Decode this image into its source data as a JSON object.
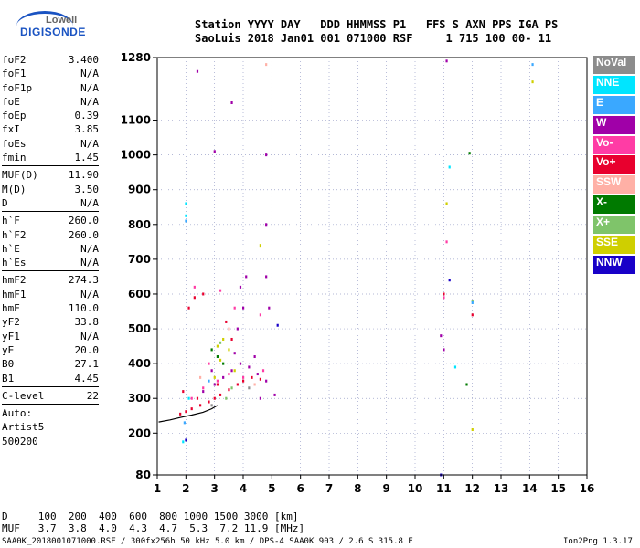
{
  "logo": {
    "line1": "Lowell",
    "line2": "DIGISONDE"
  },
  "header": {
    "labels": "Station YYYY DAY   DDD HHMMSS P1   FFS S AXN PPS IGA PS",
    "values": "SaoLuis 2018 Jan01 001 071000 RSF     1 715 100 00- 11"
  },
  "params": {
    "group1": [
      {
        "label": "foF2",
        "value": "3.400"
      },
      {
        "label": "foF1",
        "value": "N/A"
      },
      {
        "label": "foF1p",
        "value": "N/A"
      },
      {
        "label": "foE",
        "value": "N/A"
      },
      {
        "label": "foEp",
        "value": "0.39"
      },
      {
        "label": "fxI",
        "value": "3.85"
      },
      {
        "label": "foEs",
        "value": "N/A"
      },
      {
        "label": "fmin",
        "value": "1.45"
      }
    ],
    "group2": [
      {
        "label": "MUF(D)",
        "value": "11.90"
      },
      {
        "label": "M(D)",
        "value": "3.50"
      },
      {
        "label": "D",
        "value": "N/A"
      }
    ],
    "group3": [
      {
        "label": "h`F",
        "value": "260.0"
      },
      {
        "label": "h`F2",
        "value": "260.0"
      },
      {
        "label": "h`E",
        "value": "N/A"
      },
      {
        "label": "h`Es",
        "value": "N/A"
      }
    ],
    "group4": [
      {
        "label": "hmF2",
        "value": "274.3"
      },
      {
        "label": "hmF1",
        "value": "N/A"
      },
      {
        "label": "hmE",
        "value": "110.0"
      },
      {
        "label": "yF2",
        "value": "33.8"
      },
      {
        "label": "yF1",
        "value": "N/A"
      },
      {
        "label": "yE",
        "value": "20.0"
      },
      {
        "label": "B0",
        "value": "27.1"
      },
      {
        "label": "B1",
        "value": "4.45"
      }
    ],
    "group5": [
      {
        "label": "C-level",
        "value": "22"
      }
    ],
    "auto": [
      "Auto:",
      "Artist5",
      "500200"
    ]
  },
  "legend": [
    {
      "label": "NoVal",
      "color": "#8c8c8c"
    },
    {
      "label": "NNE",
      "color": "#00e5ff"
    },
    {
      "label": "E",
      "color": "#3aa8ff"
    },
    {
      "label": "W",
      "color": "#a000a8"
    },
    {
      "label": "Vo-",
      "color": "#ff3ca5"
    },
    {
      "label": "Vo+",
      "color": "#e8002e"
    },
    {
      "label": "SSW",
      "color": "#ffb0a6"
    },
    {
      "label": "X-",
      "color": "#007a00"
    },
    {
      "label": "X+",
      "color": "#7fc46a"
    },
    {
      "label": "SSE",
      "color": "#cfcf00"
    },
    {
      "label": "NNW",
      "color": "#1800c8"
    }
  ],
  "bottom": {
    "distance_line": "D     100  200  400  600  800 1000 1500 3000 [km]",
    "muf_line": "MUF   3.7  3.8  4.0  4.3  4.7  5.3  7.2 11.9 [MHz]"
  },
  "footer": {
    "left": "SAA0K_2018001071000.RSF / 300fx256h 50 kHz 5.0 km / DPS-4 SAA0K 903 / 2.6 S 315.8 E",
    "right": "Ion2Png 1.3.17"
  },
  "chart_data": {
    "type": "scatter",
    "xlabel": "",
    "ylabel": "",
    "xlim": [
      1,
      16
    ],
    "ylim": [
      80,
      1280
    ],
    "xticks": [
      "1",
      "2",
      "3",
      "4",
      "5",
      "6",
      "7",
      "8",
      "9",
      "10",
      "11",
      "12",
      "13",
      "14",
      "15",
      "16"
    ],
    "yticks": [
      "80",
      "200",
      "300",
      "400",
      "500",
      "600",
      "700",
      "800",
      "900",
      "1000",
      "1100",
      "1280"
    ],
    "ytick_values": [
      80,
      200,
      300,
      400,
      500,
      600,
      700,
      800,
      900,
      1000,
      1100,
      1280
    ],
    "grid": true,
    "series": [
      {
        "name": "Vo+",
        "color": "#e8002e",
        "points": [
          [
            1.8,
            255
          ],
          [
            2,
            262
          ],
          [
            2.2,
            270
          ],
          [
            2.5,
            280
          ],
          [
            2.8,
            290
          ],
          [
            3,
            300
          ],
          [
            3.2,
            310
          ],
          [
            3.5,
            325
          ],
          [
            3.8,
            340
          ],
          [
            4,
            350
          ],
          [
            4.3,
            360
          ],
          [
            4.6,
            355
          ],
          [
            2.1,
            560
          ],
          [
            2.3,
            590
          ],
          [
            2.6,
            600
          ],
          [
            3.4,
            520
          ],
          [
            3.6,
            470
          ],
          [
            11,
            600
          ],
          [
            12,
            540
          ],
          [
            1.9,
            320
          ],
          [
            2.4,
            300
          ],
          [
            3.1,
            340
          ]
        ]
      },
      {
        "name": "W",
        "color": "#a000a8",
        "points": [
          [
            2.6,
            320
          ],
          [
            3,
            340
          ],
          [
            3.3,
            360
          ],
          [
            3.6,
            380
          ],
          [
            3.9,
            400
          ],
          [
            4.2,
            390
          ],
          [
            4.5,
            370
          ],
          [
            4.8,
            350
          ],
          [
            3.8,
            500
          ],
          [
            4,
            560
          ],
          [
            3.9,
            620
          ],
          [
            4.1,
            650
          ],
          [
            4.8,
            650
          ],
          [
            4.8,
            800
          ],
          [
            3,
            1010
          ],
          [
            2.4,
            1240
          ],
          [
            3.6,
            1150
          ],
          [
            4.8,
            1000
          ],
          [
            11.1,
            1270
          ],
          [
            10.9,
            480
          ],
          [
            11,
            440
          ],
          [
            5.1,
            310
          ],
          [
            4.9,
            560
          ],
          [
            3.7,
            430
          ],
          [
            4.4,
            420
          ],
          [
            2.9,
            380
          ],
          [
            4.6,
            300
          ]
        ]
      },
      {
        "name": "Vo-",
        "color": "#ff3ca5",
        "points": [
          [
            2.2,
            300
          ],
          [
            2.6,
            330
          ],
          [
            3.1,
            350
          ],
          [
            3.5,
            370
          ],
          [
            4,
            360
          ],
          [
            4.7,
            380
          ],
          [
            2.3,
            620
          ],
          [
            3.2,
            610
          ],
          [
            4.6,
            540
          ],
          [
            3.7,
            560
          ],
          [
            2.8,
            400
          ],
          [
            11,
            590
          ],
          [
            11.1,
            750
          ]
        ]
      },
      {
        "name": "SSE",
        "color": "#cfcf00",
        "points": [
          [
            3.1,
            450
          ],
          [
            3.3,
            470
          ],
          [
            3.5,
            440
          ],
          [
            3.2,
            410
          ],
          [
            3.7,
            380
          ],
          [
            3,
            360
          ],
          [
            4.6,
            740
          ],
          [
            12,
            210
          ],
          [
            14.1,
            1210
          ],
          [
            11.1,
            860
          ]
        ]
      },
      {
        "name": "X-",
        "color": "#007a00",
        "points": [
          [
            3.1,
            420
          ],
          [
            3.3,
            400
          ],
          [
            2.9,
            440
          ],
          [
            11.9,
            1005
          ],
          [
            11.8,
            340
          ]
        ]
      },
      {
        "name": "X+",
        "color": "#7fc46a",
        "points": [
          [
            3.4,
            300
          ],
          [
            3.6,
            330
          ],
          [
            3.2,
            460
          ],
          [
            12,
            580
          ]
        ]
      },
      {
        "name": "NNE",
        "color": "#00e5ff",
        "points": [
          [
            2,
            860
          ],
          [
            2,
            825
          ],
          [
            1.9,
            175
          ],
          [
            11.2,
            965
          ],
          [
            11.4,
            390
          ],
          [
            2.1,
            300
          ]
        ]
      },
      {
        "name": "E",
        "color": "#3aa8ff",
        "points": [
          [
            2,
            810
          ],
          [
            14.1,
            1260
          ],
          [
            12,
            575
          ],
          [
            1.95,
            230
          ],
          [
            2.8,
            350
          ]
        ]
      },
      {
        "name": "SSW",
        "color": "#ffb0a6",
        "points": [
          [
            4.8,
            1260
          ],
          [
            2.5,
            360
          ],
          [
            3.5,
            500
          ],
          [
            4.4,
            340
          ]
        ]
      },
      {
        "name": "NNW",
        "color": "#1800c8",
        "points": [
          [
            5.2,
            510
          ],
          [
            10.9,
            80
          ],
          [
            11.2,
            640
          ],
          [
            2,
            180
          ]
        ]
      },
      {
        "name": "NoVal",
        "color": "#8c8c8c",
        "points": [
          [
            2.9,
            280
          ],
          [
            4.2,
            330
          ]
        ]
      }
    ],
    "trace": [
      [
        1.05,
        232
      ],
      [
        1.45,
        238
      ],
      [
        1.8,
        245
      ],
      [
        2.2,
        252
      ],
      [
        2.6,
        260
      ],
      [
        2.9,
        270
      ],
      [
        3.1,
        280
      ]
    ]
  }
}
